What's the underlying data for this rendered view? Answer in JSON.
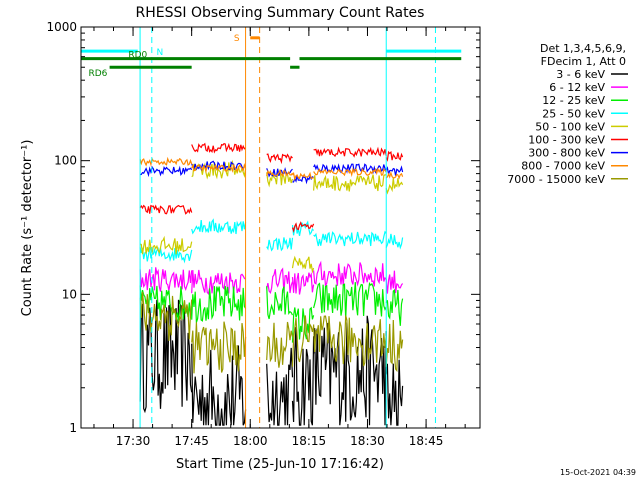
{
  "chart_data": {
    "type": "line",
    "title": "RHESSI Observing Summary Count Rates",
    "xlabel": "Start Time (25-Jun-10 17:16:42)",
    "ylabel": "Count Rate (s⁻¹ detector⁻¹)",
    "yscale": "log",
    "ylim": [
      1,
      1000
    ],
    "xlim_minutes": [
      17.278,
      18.98
    ],
    "x_ticks": [
      "17:30",
      "17:45",
      "18:00",
      "18:15",
      "18:30",
      "18:45"
    ],
    "y_ticks": [
      "1",
      "10",
      "100",
      "1000"
    ],
    "legend_header": [
      "Det 1,3,4,5,6,9,",
      "FDecim 1, Att 0"
    ],
    "legend_position": "right",
    "footer_stamp": "15-Oct-2021 04:39",
    "series": [
      {
        "name": "3 - 6 keV",
        "color": "#000000",
        "noise": 0.55,
        "segments": [
          [
            17.53,
            17.75,
            3.5
          ],
          [
            17.75,
            17.98,
            1.6
          ],
          [
            18.07,
            18.18,
            1.7
          ],
          [
            18.18,
            18.27,
            2.2
          ],
          [
            18.27,
            18.58,
            2.6
          ],
          [
            18.58,
            18.65,
            1.4
          ]
        ]
      },
      {
        "name": "6 - 12 keV",
        "color": "#ff00ff",
        "noise": 0.12,
        "segments": [
          [
            17.53,
            17.75,
            13
          ],
          [
            17.75,
            17.98,
            12.5
          ],
          [
            18.07,
            18.18,
            12.5
          ],
          [
            18.18,
            18.27,
            12
          ],
          [
            18.27,
            18.58,
            14
          ],
          [
            18.58,
            18.65,
            12.5
          ]
        ]
      },
      {
        "name": "12 - 25 keV",
        "color": "#00ee00",
        "noise": 0.18,
        "segments": [
          [
            17.53,
            17.75,
            8.5
          ],
          [
            17.75,
            17.98,
            8.5
          ],
          [
            18.07,
            18.18,
            8.5
          ],
          [
            18.18,
            18.27,
            6
          ],
          [
            18.27,
            18.58,
            9
          ],
          [
            18.58,
            18.65,
            8
          ]
        ]
      },
      {
        "name": "25 - 50 keV",
        "color": "#00ffff",
        "noise": 0.07,
        "segments": [
          [
            17.53,
            17.75,
            20
          ],
          [
            17.75,
            17.98,
            32
          ],
          [
            18.07,
            18.18,
            24
          ],
          [
            18.18,
            18.27,
            31
          ],
          [
            18.27,
            18.58,
            26
          ],
          [
            18.58,
            18.65,
            25
          ]
        ]
      },
      {
        "name": "50 - 100 keV",
        "color": "#cccc00",
        "noise": 0.08,
        "segments": [
          [
            17.53,
            17.75,
            23
          ],
          [
            17.75,
            17.98,
            85
          ],
          [
            18.07,
            18.18,
            75
          ],
          [
            18.18,
            18.27,
            17
          ],
          [
            18.27,
            18.58,
            68
          ],
          [
            18.58,
            18.65,
            66
          ]
        ]
      },
      {
        "name": "100 - 300 keV",
        "color": "#ff0000",
        "noise": 0.04,
        "segments": [
          [
            17.53,
            17.75,
            43
          ],
          [
            17.75,
            17.98,
            125
          ],
          [
            18.07,
            18.18,
            105
          ],
          [
            18.18,
            18.27,
            32
          ],
          [
            18.27,
            18.58,
            115
          ],
          [
            18.58,
            18.65,
            108
          ]
        ]
      },
      {
        "name": "300 - 800 keV",
        "color": "#0000ff",
        "noise": 0.04,
        "segments": [
          [
            17.53,
            17.75,
            84
          ],
          [
            17.75,
            17.98,
            92
          ],
          [
            18.07,
            18.18,
            82
          ],
          [
            18.18,
            18.27,
            73
          ],
          [
            18.27,
            18.58,
            88
          ],
          [
            18.58,
            18.65,
            83
          ]
        ]
      },
      {
        "name": "800 - 7000 keV",
        "color": "#ff8800",
        "noise": 0.03,
        "segments": [
          [
            17.53,
            17.75,
            98
          ],
          [
            17.75,
            17.98,
            88
          ],
          [
            18.07,
            18.18,
            80
          ],
          [
            18.18,
            18.27,
            77
          ],
          [
            18.27,
            18.58,
            82
          ],
          [
            18.58,
            18.65,
            78
          ]
        ]
      },
      {
        "name": "7000 - 15000 keV",
        "color": "#999900",
        "noise": 0.25,
        "segments": [
          [
            17.53,
            17.75,
            7
          ],
          [
            17.75,
            17.98,
            4
          ],
          [
            18.07,
            18.18,
            4
          ],
          [
            18.18,
            18.27,
            4.5
          ],
          [
            18.27,
            18.58,
            4.5
          ],
          [
            18.58,
            18.65,
            4.2
          ]
        ]
      }
    ],
    "flags": [
      {
        "name": "N",
        "label": "N",
        "color": "#00ffff",
        "value": 660,
        "ranges": [
          [
            17.28,
            17.52
          ],
          [
            18.58,
            18.9
          ]
        ]
      },
      {
        "name": "RD0",
        "label": "RD0",
        "color": "#008000",
        "value": 580,
        "ranges": [
          [
            17.28,
            17.98
          ],
          [
            17.98,
            18.17
          ],
          [
            18.21,
            18.9
          ]
        ]
      },
      {
        "name": "RD6",
        "label": "RD6",
        "color": "#008000",
        "value": 500,
        "ranges": [
          [
            17.4,
            17.75
          ],
          [
            18.17,
            18.21
          ]
        ]
      },
      {
        "name": "S",
        "label": "S",
        "color": "#ff8800",
        "value": 830,
        "ranges": [
          [
            18.0,
            18.04
          ]
        ]
      }
    ],
    "vertical_lines": [
      {
        "at": 17.53,
        "color": "#00ffff",
        "style": "solid"
      },
      {
        "at": 17.58,
        "color": "#00ffff",
        "style": "dashed"
      },
      {
        "at": 17.98,
        "color": "#ff8800",
        "style": "solid"
      },
      {
        "at": 18.04,
        "color": "#ff8800",
        "style": "dashed"
      },
      {
        "at": 18.58,
        "color": "#00ffff",
        "style": "solid"
      },
      {
        "at": 18.79,
        "color": "#00ffff",
        "style": "dashed"
      }
    ]
  }
}
